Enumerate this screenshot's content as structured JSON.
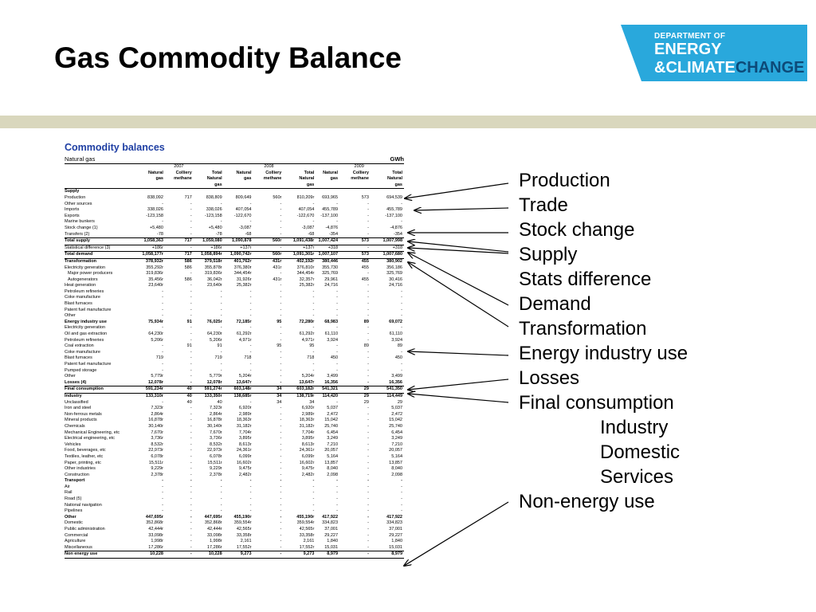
{
  "slide": {
    "title": "Gas Commodity Balance",
    "logo": {
      "line1": "DEPARTMENT OF",
      "line2": "ENERGY",
      "line3a": "&CLIMATE",
      "line3b": "CHANGE"
    }
  },
  "table": {
    "heading": "Commodity balances",
    "subtitle": "Natural gas",
    "unit": "GWh",
    "years": [
      "2007",
      "2008",
      "2009"
    ],
    "col_headers": [
      [
        "Natural",
        "Colliery",
        "Total",
        "Natural",
        "Colliery",
        "Total",
        "Natural",
        "Colliery",
        "Total"
      ],
      [
        "gas",
        "methane",
        "Natural",
        "gas",
        "methane",
        "Natural",
        "gas",
        "methane",
        "Natural"
      ],
      [
        "",
        "",
        "gas",
        "",
        "",
        "gas",
        "",
        "",
        "gas"
      ]
    ],
    "rows": [
      {
        "label": "Supply",
        "v": [
          "",
          "",
          "",
          "",
          "",
          "",
          "",
          "",
          ""
        ],
        "bold": true
      },
      {
        "label": "Production",
        "v": [
          "838,092",
          "717",
          "838,809",
          "809,649",
          "560r",
          "810,209r",
          "693,965",
          "573",
          "694,539"
        ]
      },
      {
        "label": "Other sources",
        "v": [
          "-",
          "-",
          "-",
          "-",
          "-",
          "-",
          "-",
          "-",
          "-"
        ]
      },
      {
        "label": "Imports",
        "v": [
          "338,026",
          "-",
          "338,026",
          "407,054",
          "-",
          "407,054",
          "455,789",
          "-",
          "455,789"
        ]
      },
      {
        "label": "Exports",
        "v": [
          "-123,158",
          "-",
          "-123,158",
          "-122,670",
          "-",
          "-122,670",
          "-137,100",
          "-",
          "-137,100"
        ]
      },
      {
        "label": "Marine bunkers",
        "v": [
          "-",
          "-",
          "-",
          "-",
          "-",
          "-",
          "-",
          "-",
          "-"
        ]
      },
      {
        "label": "Stock change (1)",
        "v": [
          "+5,480",
          "-",
          "+5,480",
          "-3,087",
          "-",
          "-3,087",
          "-4,876",
          "-",
          "-4,876"
        ]
      },
      {
        "label": "Transfers (2)",
        "v": [
          "-78",
          "-",
          "-78",
          "-68",
          "-",
          "-68",
          "-354",
          "-",
          "-354"
        ]
      },
      {
        "label": "Total supply",
        "v": [
          "1,058,363",
          "717",
          "1,059,080",
          "1,090,878",
          "560r",
          "1,091,438r",
          "1,007,424",
          "573",
          "1,007,998"
        ],
        "bold": true,
        "bt": true
      },
      {
        "label": "Statistical difference (3)",
        "v": [
          "+186r",
          "-",
          "+186r",
          "+137r",
          "-",
          "+137r",
          "+318",
          "-",
          "+318"
        ],
        "bt": true
      },
      {
        "label": "Total demand",
        "v": [
          "1,058,177r",
          "717",
          "1,058,894r",
          "1,090,742r",
          "560r",
          "1,091,301r",
          "1,007,107",
          "573",
          "1,007,680"
        ],
        "bold": true,
        "bt": true
      },
      {
        "label": "Transformation",
        "v": [
          "378,932r",
          "586",
          "379,518r",
          "401,762r",
          "431r",
          "402,192r",
          "380,446",
          "455",
          "380,902"
        ],
        "bold": true,
        "bt": true
      },
      {
        "label": "Electricity generation",
        "v": [
          "355,292r",
          "586",
          "355,878r",
          "376,380r",
          "431r",
          "376,810r",
          "355,730",
          "455",
          "356,186"
        ]
      },
      {
        "label": "Major power producers",
        "v": [
          "319,836r",
          "-",
          "319,836r",
          "344,454r",
          "-",
          "344,454r",
          "325,769",
          "-",
          "325,769"
        ],
        "ind": true
      },
      {
        "label": "Autogenerators",
        "v": [
          "35,456r",
          "586",
          "36,042r",
          "31,926r",
          "431r",
          "32,357r",
          "29,961",
          "455",
          "30,416"
        ],
        "ind": true
      },
      {
        "label": "Heat generation",
        "v": [
          "23,640r",
          "-",
          "23,640r",
          "25,382r",
          "-",
          "25,382r",
          "24,716",
          "-",
          "24,716"
        ]
      },
      {
        "label": "Petroleum refineries",
        "v": [
          "-",
          "-",
          "-",
          "-",
          "-",
          "-",
          "-",
          "-",
          "-"
        ]
      },
      {
        "label": "Coke manufacture",
        "v": [
          "-",
          "-",
          "-",
          "-",
          "-",
          "-",
          "-",
          "-",
          "-"
        ]
      },
      {
        "label": "Blast furnaces",
        "v": [
          "-",
          "-",
          "-",
          "-",
          "-",
          "-",
          "-",
          "-",
          "-"
        ]
      },
      {
        "label": "Patent fuel manufacture",
        "v": [
          "-",
          "-",
          "-",
          "-",
          "-",
          "-",
          "-",
          "-",
          "-"
        ]
      },
      {
        "label": "Other",
        "v": [
          "-",
          "-",
          "-",
          "-",
          "-",
          "-",
          "-",
          "-",
          "-"
        ]
      },
      {
        "label": "Energy industry use",
        "v": [
          "75,934r",
          "91",
          "76,025r",
          "72,185r",
          "95",
          "72,280r",
          "68,983",
          "89",
          "69,072"
        ],
        "bold": true
      },
      {
        "label": "Electricity generation",
        "v": [
          "-",
          "-",
          "-",
          "-",
          "-",
          "-",
          "-",
          "-",
          "-"
        ]
      },
      {
        "label": "Oil and gas extraction",
        "v": [
          "64,230r",
          "-",
          "64,230r",
          "61,292r",
          "-",
          "61,292r",
          "61,110",
          "-",
          "61,110"
        ]
      },
      {
        "label": "Petroleum refineries",
        "v": [
          "5,206r",
          "-",
          "5,206r",
          "4,971r",
          "-",
          "4,971r",
          "3,924",
          "-",
          "3,924"
        ]
      },
      {
        "label": "Coal extraction",
        "v": [
          "-",
          "91",
          "91",
          "-",
          "95",
          "95",
          "-",
          "89",
          "89"
        ]
      },
      {
        "label": "Coke manufacture",
        "v": [
          "-",
          "-",
          "-",
          "-",
          "-",
          "-",
          "-",
          "-",
          "-"
        ]
      },
      {
        "label": "Blast furnaces",
        "v": [
          "719",
          "-",
          "719",
          "718",
          "-",
          "718",
          "450",
          "-",
          "450"
        ]
      },
      {
        "label": "Patent fuel manufacture",
        "v": [
          "-",
          "-",
          "-",
          "-",
          "-",
          "-",
          "-",
          "-",
          "-"
        ]
      },
      {
        "label": "Pumped storage",
        "v": [
          "-",
          "-",
          "-",
          "-",
          "-",
          "-",
          "-",
          "-",
          "-"
        ]
      },
      {
        "label": "Other",
        "v": [
          "5,779r",
          "-",
          "5,779r",
          "5,204r",
          "-",
          "5,204r",
          "3,499",
          "-",
          "3,499"
        ]
      },
      {
        "label": "Losses (4)",
        "v": [
          "12,078r",
          "-",
          "12,078r",
          "13,647r",
          "-",
          "13,647r",
          "16,356",
          "-",
          "16,356"
        ],
        "bold": true
      },
      {
        "label": "Final consumption",
        "v": [
          "591,234r",
          "40",
          "591,274r",
          "603,148r",
          "34",
          "603,182r",
          "541,321",
          "29",
          "541,350"
        ],
        "bold": true,
        "bt": true
      },
      {
        "label": "Industry",
        "v": [
          "133,310r",
          "40",
          "133,350r",
          "138,685r",
          "34",
          "138,719r",
          "114,420",
          "29",
          "114,449"
        ],
        "bold": true,
        "bt": true
      },
      {
        "label": "Unclassified",
        "v": [
          "-",
          "40",
          "40",
          "-",
          "34",
          "34",
          "-",
          "29",
          "29"
        ]
      },
      {
        "label": "Iron and steel",
        "v": [
          "7,323r",
          "-",
          "7,323r",
          "6,920r",
          "-",
          "6,920r",
          "5,037",
          "-",
          "5,037"
        ]
      },
      {
        "label": "Non-ferrous metals",
        "v": [
          "2,864r",
          "-",
          "2,864r",
          "2,989r",
          "-",
          "2,989r",
          "2,472",
          "-",
          "2,472"
        ]
      },
      {
        "label": "Mineral products",
        "v": [
          "16,878r",
          "-",
          "16,878r",
          "18,363r",
          "-",
          "18,363r",
          "15,042",
          "-",
          "15,042"
        ]
      },
      {
        "label": "Chemicals",
        "v": [
          "30,140r",
          "-",
          "30,140r",
          "31,182r",
          "-",
          "31,182r",
          "25,740",
          "-",
          "25,740"
        ]
      },
      {
        "label": "Mechanical Engineering, etc",
        "v": [
          "7,670r",
          "-",
          "7,670r",
          "7,704r",
          "-",
          "7,704r",
          "6,454",
          "-",
          "6,454"
        ]
      },
      {
        "label": "Electrical engineering, etc",
        "v": [
          "3,736r",
          "-",
          "3,736r",
          "3,895r",
          "-",
          "3,895r",
          "3,249",
          "-",
          "3,249"
        ]
      },
      {
        "label": "Vehicles",
        "v": [
          "8,532r",
          "-",
          "8,532r",
          "8,613r",
          "-",
          "8,613r",
          "7,210",
          "-",
          "7,210"
        ]
      },
      {
        "label": "Food, beverages, etc",
        "v": [
          "22,973r",
          "-",
          "22,973r",
          "24,361r",
          "-",
          "24,361r",
          "20,057",
          "-",
          "20,057"
        ]
      },
      {
        "label": "Textiles, leather, etc",
        "v": [
          "6,078r",
          "-",
          "6,078r",
          "6,099r",
          "-",
          "6,099r",
          "5,164",
          "-",
          "5,164"
        ]
      },
      {
        "label": "Paper, printing, etc",
        "v": [
          "15,511r",
          "-",
          "15,511r",
          "16,602r",
          "-",
          "16,602r",
          "13,857",
          "-",
          "13,857"
        ]
      },
      {
        "label": "Other industries",
        "v": [
          "9,229r",
          "-",
          "9,229r",
          "9,475r",
          "-",
          "9,475r",
          "8,040",
          "-",
          "8,040"
        ]
      },
      {
        "label": "Construction",
        "v": [
          "2,378r",
          "-",
          "2,378r",
          "2,482r",
          "-",
          "2,482r",
          "2,098",
          "-",
          "2,098"
        ]
      },
      {
        "label": "Transport",
        "v": [
          "-",
          "-",
          "-",
          "-",
          "-",
          "-",
          "-",
          "-",
          "-"
        ],
        "bold": true
      },
      {
        "label": "Air",
        "v": [
          "-",
          "-",
          "-",
          "-",
          "-",
          "-",
          "-",
          "-",
          "-"
        ]
      },
      {
        "label": "Rail",
        "v": [
          "-",
          "-",
          "-",
          "-",
          "-",
          "-",
          "-",
          "-",
          "-"
        ]
      },
      {
        "label": "Road (5)",
        "v": [
          "-",
          "-",
          "-",
          "-",
          "-",
          "-",
          "-",
          "-",
          "-"
        ]
      },
      {
        "label": "National navigation",
        "v": [
          "-",
          "-",
          "-",
          "-",
          "-",
          "-",
          "-",
          "-",
          "-"
        ]
      },
      {
        "label": "Pipelines",
        "v": [
          "-",
          "-",
          "-",
          "-",
          "-",
          "-",
          "-",
          "-",
          "-"
        ]
      },
      {
        "label": "Other",
        "v": [
          "447,695r",
          "-",
          "447,695r",
          "455,190r",
          "-",
          "455,190r",
          "417,922",
          "-",
          "417,922"
        ],
        "bold": true
      },
      {
        "label": "Domestic",
        "v": [
          "352,868r",
          "-",
          "352,868r",
          "359,554r",
          "-",
          "359,554r",
          "334,823",
          "-",
          "334,823"
        ]
      },
      {
        "label": "Public administration",
        "v": [
          "42,444r",
          "-",
          "42,444r",
          "42,565r",
          "-",
          "42,565r",
          "37,001",
          "-",
          "37,001"
        ]
      },
      {
        "label": "Commercial",
        "v": [
          "33,098r",
          "-",
          "33,098r",
          "33,358r",
          "-",
          "33,358r",
          "29,227",
          "-",
          "29,227"
        ]
      },
      {
        "label": "Agriculture",
        "v": [
          "1,998r",
          "-",
          "1,998r",
          "2,161",
          "-",
          "2,161",
          "1,840",
          "-",
          "1,840"
        ]
      },
      {
        "label": "Miscellaneous",
        "v": [
          "17,286r",
          "-",
          "17,286r",
          "17,552r",
          "-",
          "17,552r",
          "15,031",
          "-",
          "15,031"
        ]
      },
      {
        "label": "Non energy use",
        "v": [
          "10,228",
          "-",
          "10,228",
          "9,273",
          "-",
          "9,273",
          "8,979",
          "-",
          "8,979"
        ],
        "bold": true,
        "bt": true,
        "bb": true
      }
    ]
  },
  "callouts": [
    "Production",
    "Trade",
    "Stock change",
    "Supply",
    "Stats difference",
    "Demand",
    "Transformation",
    "Energy industry use",
    "Losses",
    "Final consumption",
    "Industry",
    "Domestic",
    "Services",
    "Non-energy use"
  ]
}
